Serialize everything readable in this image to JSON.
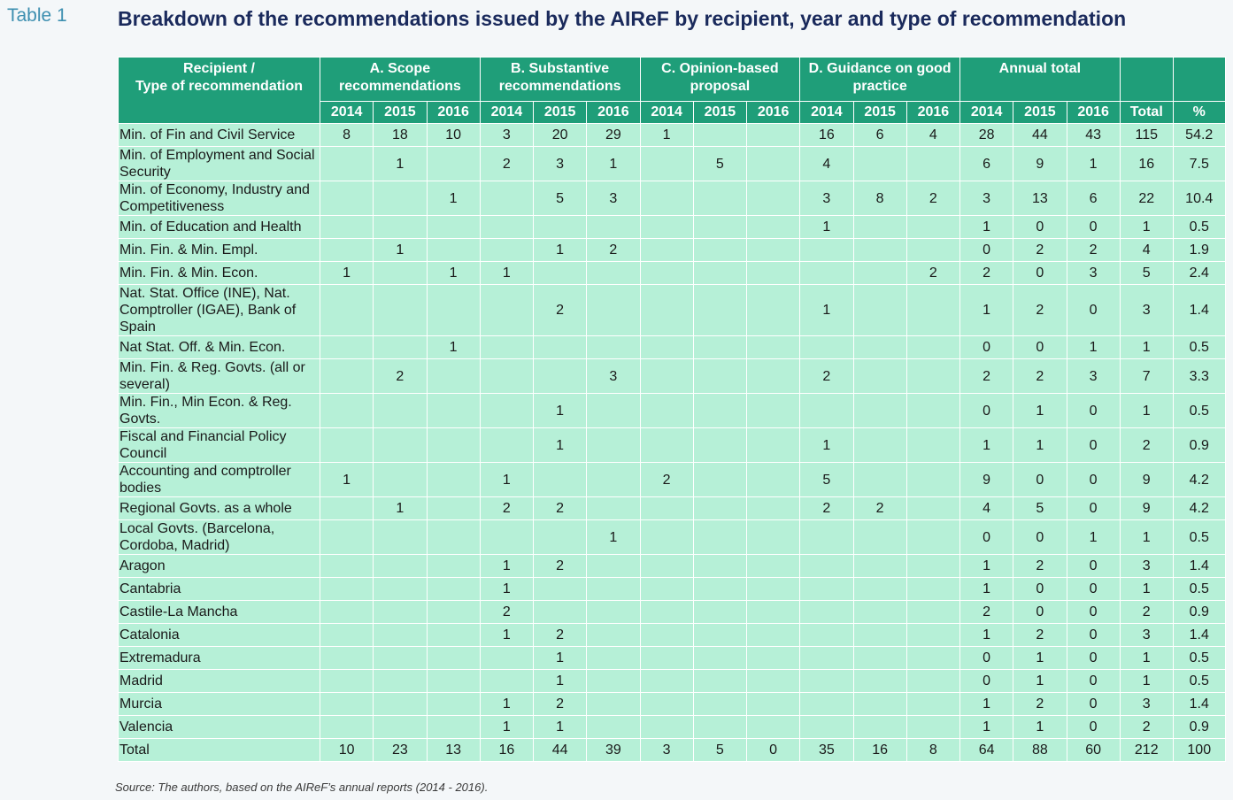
{
  "table_label": "Table 1",
  "title": "Breakdown of the recommendations issued by the AIReF by recipient, year and type of recommendation",
  "header": {
    "recipient": "Recipient /\nType of recommendation",
    "groups": [
      "A. Scope recommendations",
      "B. Substantive recommendations",
      "C. Opinion-based proposal",
      "D. Guidance on good practice",
      "Annual total"
    ],
    "years": [
      "2014",
      "2015",
      "2016"
    ],
    "total": "Total",
    "pct": "%"
  },
  "rows": [
    {
      "name": "Min. of Fin and Civil Service",
      "lines": 1,
      "cells": [
        "8",
        "18",
        "10",
        "3",
        "20",
        "29",
        "1",
        "",
        "",
        "16",
        "6",
        "4",
        "28",
        "44",
        "43",
        "115",
        "54.2"
      ]
    },
    {
      "name": "Min. of Employment and Social Security",
      "lines": 2,
      "cells": [
        "",
        "1",
        "",
        "2",
        "3",
        "1",
        "",
        "5",
        "",
        "4",
        "",
        "",
        "6",
        "9",
        "1",
        "16",
        "7.5"
      ]
    },
    {
      "name": "Min. of Economy, Industry and Competitiveness",
      "lines": 2,
      "cells": [
        "",
        "",
        "1",
        "",
        "5",
        "3",
        "",
        "",
        "",
        "3",
        "8",
        "2",
        "3",
        "13",
        "6",
        "22",
        "10.4"
      ]
    },
    {
      "name": "Min. of Education and Health",
      "lines": 1,
      "cells": [
        "",
        "",
        "",
        "",
        "",
        "",
        "",
        "",
        "",
        "1",
        "",
        "",
        "1",
        "0",
        "0",
        "1",
        "0.5"
      ]
    },
    {
      "name": "Min. Fin. & Min. Empl.",
      "lines": 1,
      "cells": [
        "",
        "1",
        "",
        "",
        "1",
        "2",
        "",
        "",
        "",
        "",
        "",
        "",
        "0",
        "2",
        "2",
        "4",
        "1.9"
      ]
    },
    {
      "name": "Min. Fin. & Min. Econ.",
      "lines": 1,
      "cells": [
        "1",
        "",
        "1",
        "1",
        "",
        "",
        "",
        "",
        "",
        "",
        "",
        "2",
        "2",
        "0",
        "3",
        "5",
        "2.4"
      ]
    },
    {
      "name": "Nat. Stat. Office (INE), Nat. Comptroller (IGAE), Bank of Spain",
      "lines": 3,
      "cells": [
        "",
        "",
        "",
        "",
        "2",
        "",
        "",
        "",
        "",
        "1",
        "",
        "",
        "1",
        "2",
        "0",
        "3",
        "1.4"
      ]
    },
    {
      "name": "Nat Stat. Off. & Min. Econ.",
      "lines": 1,
      "cells": [
        "",
        "",
        "1",
        "",
        "",
        "",
        "",
        "",
        "",
        "",
        "",
        "",
        "0",
        "0",
        "1",
        "1",
        "0.5"
      ]
    },
    {
      "name": "Min. Fin. & Reg. Govts. (all or several)",
      "lines": 2,
      "cells": [
        "",
        "2",
        "",
        "",
        "",
        "3",
        "",
        "",
        "",
        "2",
        "",
        "",
        "2",
        "2",
        "3",
        "7",
        "3.3"
      ]
    },
    {
      "name": "Min. Fin., Min Econ. & Reg. Govts.",
      "lines": 2,
      "cells": [
        "",
        "",
        "",
        "",
        "1",
        "",
        "",
        "",
        "",
        "",
        "",
        "",
        "0",
        "1",
        "0",
        "1",
        "0.5"
      ]
    },
    {
      "name": "Fiscal and Financial Policy Council",
      "lines": 2,
      "cells": [
        "",
        "",
        "",
        "",
        "1",
        "",
        "",
        "",
        "",
        "1",
        "",
        "",
        "1",
        "1",
        "0",
        "2",
        "0.9"
      ]
    },
    {
      "name": "Accounting and comptroller bodies",
      "lines": 2,
      "cells": [
        "1",
        "",
        "",
        "1",
        "",
        "",
        "2",
        "",
        "",
        "5",
        "",
        "",
        "9",
        "0",
        "0",
        "9",
        "4.2"
      ]
    },
    {
      "name": "Regional Govts. as a whole",
      "lines": 1,
      "cells": [
        "",
        "1",
        "",
        "2",
        "2",
        "",
        "",
        "",
        "",
        "2",
        "2",
        "",
        "4",
        "5",
        "0",
        "9",
        "4.2"
      ]
    },
    {
      "name": "Local Govts. (Barcelona, Cordoba, Madrid)",
      "lines": 2,
      "cells": [
        "",
        "",
        "",
        "",
        "",
        "1",
        "",
        "",
        "",
        "",
        "",
        "",
        "0",
        "0",
        "1",
        "1",
        "0.5"
      ]
    },
    {
      "name": "Aragon",
      "lines": 1,
      "cells": [
        "",
        "",
        "",
        "1",
        "2",
        "",
        "",
        "",
        "",
        "",
        "",
        "",
        "1",
        "2",
        "0",
        "3",
        "1.4"
      ]
    },
    {
      "name": "Cantabria",
      "lines": 1,
      "cells": [
        "",
        "",
        "",
        "1",
        "",
        "",
        "",
        "",
        "",
        "",
        "",
        "",
        "1",
        "0",
        "0",
        "1",
        "0.5"
      ]
    },
    {
      "name": "Castile-La Mancha",
      "lines": 1,
      "cells": [
        "",
        "",
        "",
        "2",
        "",
        "",
        "",
        "",
        "",
        "",
        "",
        "",
        "2",
        "0",
        "0",
        "2",
        "0.9"
      ]
    },
    {
      "name": "Catalonia",
      "lines": 1,
      "cells": [
        "",
        "",
        "",
        "1",
        "2",
        "",
        "",
        "",
        "",
        "",
        "",
        "",
        "1",
        "2",
        "0",
        "3",
        "1.4"
      ]
    },
    {
      "name": "Extremadura",
      "lines": 1,
      "cells": [
        "",
        "",
        "",
        "",
        "1",
        "",
        "",
        "",
        "",
        "",
        "",
        "",
        "0",
        "1",
        "0",
        "1",
        "0.5"
      ]
    },
    {
      "name": "Madrid",
      "lines": 1,
      "cells": [
        "",
        "",
        "",
        "",
        "1",
        "",
        "",
        "",
        "",
        "",
        "",
        "",
        "0",
        "1",
        "0",
        "1",
        "0.5"
      ]
    },
    {
      "name": "Murcia",
      "lines": 1,
      "cells": [
        "",
        "",
        "",
        "1",
        "2",
        "",
        "",
        "",
        "",
        "",
        "",
        "",
        "1",
        "2",
        "0",
        "3",
        "1.4"
      ]
    },
    {
      "name": "Valencia",
      "lines": 1,
      "cells": [
        "",
        "",
        "",
        "1",
        "1",
        "",
        "",
        "",
        "",
        "",
        "",
        "",
        "1",
        "1",
        "0",
        "2",
        "0.9"
      ]
    }
  ],
  "total_row": {
    "name": "Total",
    "cells": [
      "10",
      "23",
      "13",
      "16",
      "44",
      "39",
      "3",
      "5",
      "0",
      "35",
      "16",
      "8",
      "64",
      "88",
      "60",
      "212",
      "100"
    ]
  },
  "source": "Source: The authors, based on the AIReF’s annual reports (2014 - 2016)."
}
